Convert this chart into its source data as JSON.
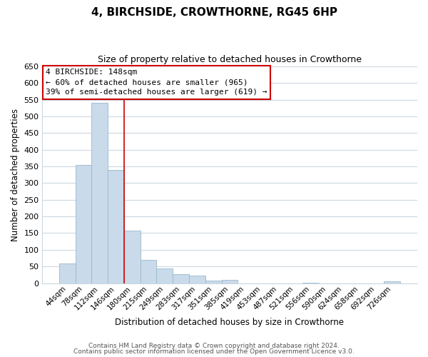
{
  "title": "4, BIRCHSIDE, CROWTHORNE, RG45 6HP",
  "subtitle": "Size of property relative to detached houses in Crowthorne",
  "xlabel": "Distribution of detached houses by size in Crowthorne",
  "ylabel": "Number of detached properties",
  "footer_line1": "Contains HM Land Registry data © Crown copyright and database right 2024.",
  "footer_line2": "Contains public sector information licensed under the Open Government Licence v3.0.",
  "bar_labels": [
    "44sqm",
    "78sqm",
    "112sqm",
    "146sqm",
    "180sqm",
    "215sqm",
    "249sqm",
    "283sqm",
    "317sqm",
    "351sqm",
    "385sqm",
    "419sqm",
    "453sqm",
    "487sqm",
    "521sqm",
    "556sqm",
    "590sqm",
    "624sqm",
    "658sqm",
    "692sqm",
    "726sqm"
  ],
  "bar_heights": [
    60,
    355,
    540,
    340,
    158,
    70,
    43,
    26,
    22,
    8,
    10,
    0,
    0,
    0,
    0,
    2,
    0,
    0,
    0,
    0,
    5
  ],
  "bar_color": "#c9daea",
  "bar_edge_color": "#9ab8cc",
  "highlight_index": 3,
  "highlight_line_color": "#cc0000",
  "annotation_title": "4 BIRCHSIDE: 148sqm",
  "annotation_line1": "← 60% of detached houses are smaller (965)",
  "annotation_line2": "39% of semi-detached houses are larger (619) →",
  "annotation_box_color": "#ffffff",
  "annotation_box_edge": "#cc0000",
  "ylim": [
    0,
    650
  ],
  "yticks": [
    0,
    50,
    100,
    150,
    200,
    250,
    300,
    350,
    400,
    450,
    500,
    550,
    600,
    650
  ],
  "background_color": "#ffffff",
  "grid_color": "#ccd8e0",
  "title_fontsize": 11,
  "subtitle_fontsize": 9,
  "axis_label_fontsize": 8.5,
  "tick_fontsize": 8,
  "footer_fontsize": 6.5
}
